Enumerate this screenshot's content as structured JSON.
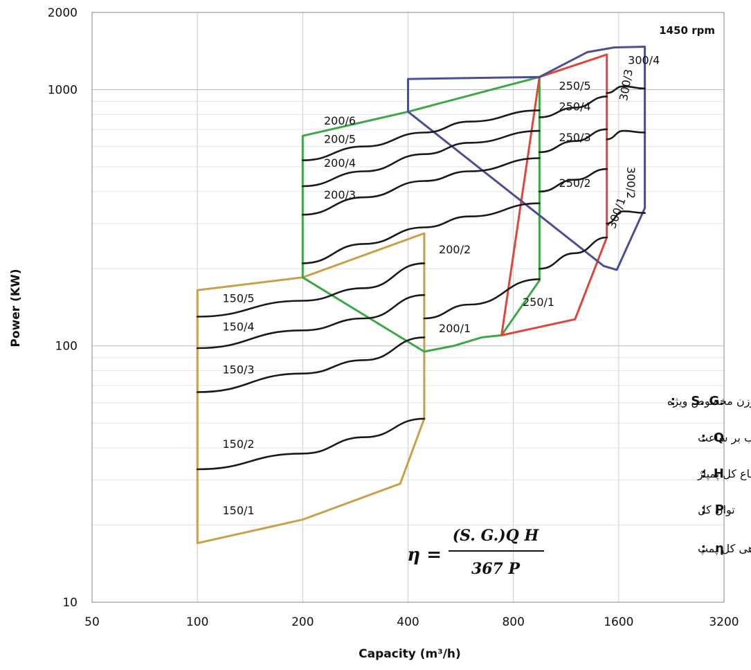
{
  "chart_data": {
    "type": "line",
    "x_scale": "log",
    "y_scale": "log",
    "xlim": [
      50,
      3200
    ],
    "ylim": [
      10,
      2000
    ],
    "xlabel": "Capacity (m³/h)",
    "ylabel": "Power (KW)",
    "x_ticks": [
      "50",
      "100",
      "200",
      "400",
      "800",
      "1600",
      "3200"
    ],
    "y_ticks": [
      "10",
      "100",
      "1000",
      "2000"
    ],
    "speed_label": "1450 rpm",
    "grid": true,
    "colors": {
      "series_150": "#c9a04a",
      "series_200": "#3aa845",
      "series_250": "#e0443a",
      "series_300": "#4b4e91",
      "curve": "#1a1a1a",
      "grid": "#cccccc"
    },
    "envelopes": [
      {
        "name": "150",
        "color": "#c9a04a",
        "points": [
          [
            100,
            165
          ],
          [
            100,
            17
          ],
          [
            200,
            21
          ],
          [
            380,
            29
          ],
          [
            445,
            52
          ],
          [
            445,
            275
          ],
          [
            200,
            185
          ]
        ]
      },
      {
        "name": "200",
        "color": "#3aa845",
        "points": [
          [
            200,
            185
          ],
          [
            200,
            660
          ],
          [
            400,
            820
          ],
          [
            950,
            1120
          ],
          [
            950,
            180
          ],
          [
            740,
            110
          ],
          [
            650,
            108
          ],
          [
            540,
            100
          ],
          [
            445,
            95
          ]
        ]
      },
      {
        "name": "250",
        "color": "#e0443a",
        "points": [
          [
            740,
            110
          ],
          [
            1200,
            127
          ],
          [
            1480,
            265
          ],
          [
            1480,
            1370
          ],
          [
            950,
            1120
          ]
        ]
      },
      {
        "name": "300",
        "color": "#4b4e91",
        "points": [
          [
            1450,
            205
          ],
          [
            1580,
            198
          ],
          [
            1900,
            345
          ],
          [
            1900,
            1470
          ],
          [
            1550,
            1460
          ],
          [
            1300,
            1400
          ],
          [
            950,
            1120
          ],
          [
            400,
            1100
          ],
          [
            400,
            820
          ]
        ]
      }
    ],
    "series": [
      {
        "name": "150/1",
        "x": [
          100,
          200,
          300,
          445
        ],
        "y": [
          33,
          38,
          44,
          52
        ]
      },
      {
        "name": "150/2",
        "x": [
          100,
          200,
          300,
          445
        ],
        "y": [
          66,
          78,
          88,
          108
        ]
      },
      {
        "name": "150/3",
        "x": [
          100,
          200,
          300,
          445
        ],
        "y": [
          98,
          115,
          128,
          158
        ]
      },
      {
        "name": "150/4",
        "x": [
          100,
          200,
          300,
          445
        ],
        "y": [
          130,
          150,
          168,
          210
        ]
      },
      {
        "name": "200/1",
        "x": [
          445,
          600,
          950
        ],
        "y": [
          128,
          145,
          182
        ]
      },
      {
        "name": "200/2",
        "x": [
          200,
          300,
          445,
          600,
          950
        ],
        "y": [
          210,
          250,
          290,
          320,
          360
        ]
      },
      {
        "name": "200/3",
        "x": [
          200,
          300,
          445,
          600,
          950
        ],
        "y": [
          325,
          380,
          440,
          480,
          540
        ]
      },
      {
        "name": "200/4",
        "x": [
          200,
          300,
          445,
          600,
          950
        ],
        "y": [
          420,
          480,
          560,
          620,
          690
        ]
      },
      {
        "name": "200/5",
        "x": [
          200,
          300,
          445,
          600,
          950
        ],
        "y": [
          530,
          600,
          680,
          750,
          830
        ]
      },
      {
        "name": "250/1",
        "x": [
          950,
          1200,
          1480
        ],
        "y": [
          200,
          230,
          265
        ]
      },
      {
        "name": "250/2",
        "x": [
          950,
          1200,
          1480
        ],
        "y": [
          400,
          445,
          490
        ]
      },
      {
        "name": "250/3",
        "x": [
          950,
          1200,
          1480
        ],
        "y": [
          570,
          630,
          700
        ]
      },
      {
        "name": "250/4",
        "x": [
          950,
          1200,
          1480
        ],
        "y": [
          780,
          850,
          940
        ]
      },
      {
        "name": "300/1",
        "x": [
          1480,
          1650,
          1900
        ],
        "y": [
          300,
          335,
          330
        ]
      },
      {
        "name": "300/2",
        "x": [
          1480,
          1650,
          1900
        ],
        "y": [
          640,
          690,
          680
        ]
      },
      {
        "name": "300/3",
        "x": [
          1480,
          1650,
          1900
        ],
        "y": [
          970,
          1030,
          1010
        ]
      }
    ],
    "labels": [
      {
        "text": "150/1",
        "x": 118,
        "y": 22
      },
      {
        "text": "150/2",
        "x": 118,
        "y": 40
      },
      {
        "text": "150/3",
        "x": 118,
        "y": 78
      },
      {
        "text": "150/4",
        "x": 118,
        "y": 115
      },
      {
        "text": "150/5",
        "x": 118,
        "y": 148
      },
      {
        "text": "200/1",
        "x": 490,
        "y": 113
      },
      {
        "text": "200/2",
        "x": 490,
        "y": 230
      },
      {
        "text": "200/3",
        "x": 230,
        "y": 375
      },
      {
        "text": "200/4",
        "x": 230,
        "y": 500
      },
      {
        "text": "200/5",
        "x": 230,
        "y": 620
      },
      {
        "text": "200/6",
        "x": 230,
        "y": 730
      },
      {
        "text": "250/1",
        "x": 850,
        "y": 143
      },
      {
        "text": "250/2",
        "x": 1080,
        "y": 417
      },
      {
        "text": "250/3",
        "x": 1080,
        "y": 630
      },
      {
        "text": "250/4",
        "x": 1080,
        "y": 830
      },
      {
        "text": "250/5",
        "x": 1080,
        "y": 1000
      },
      {
        "text": "300/1",
        "x": 1560,
        "y": 285,
        "rotate": -70
      },
      {
        "text": "300/2",
        "x": 1690,
        "y": 500,
        "rotate": 90
      },
      {
        "text": "300/3",
        "x": 1690,
        "y": 900,
        "rotate": -80
      },
      {
        "text": "300/4",
        "x": 1700,
        "y": 1260
      }
    ]
  },
  "legend": [
    {
      "key": "S. G.",
      "text": "وزن مخصوص ویژه"
    },
    {
      "key": "Q",
      "text": "دبی برحسب مترمکعب بر ساعت"
    },
    {
      "key": "H",
      "text": "ارتفاع کل پمپاژ"
    },
    {
      "key": "P",
      "text": "توان کل"
    },
    {
      "key": "η",
      "text": "بازدهی کل پمپ"
    }
  ],
  "formula": {
    "lhs": "η =",
    "numerator": "(S. G.)Q H",
    "denominator": "367 P"
  }
}
